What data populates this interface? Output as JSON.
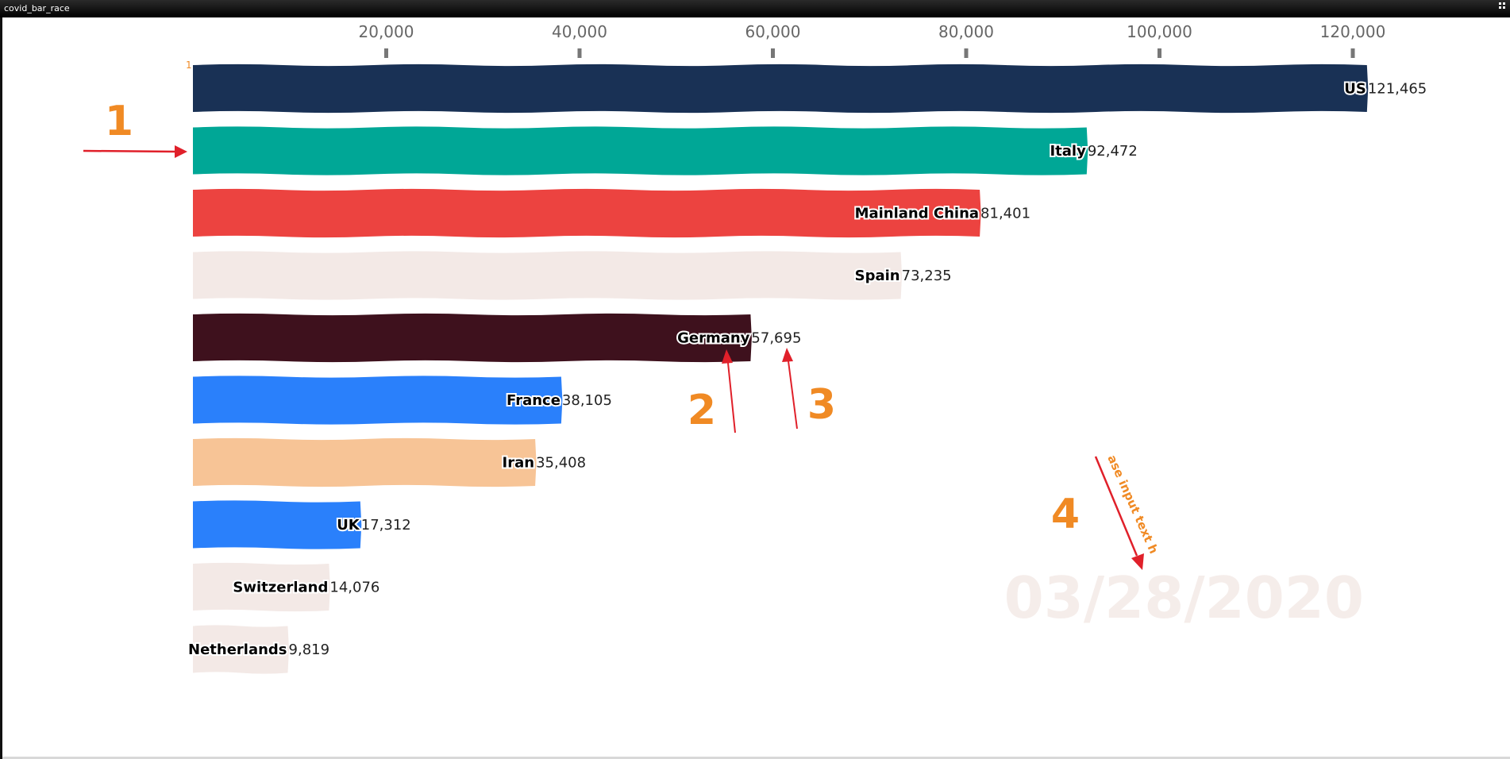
{
  "window": {
    "title": "covid_bar_race"
  },
  "chart_data": {
    "type": "bar",
    "orientation": "horizontal",
    "categories": [
      "US",
      "Italy",
      "Mainland China",
      "Spain",
      "Germany",
      "France",
      "Iran",
      "UK",
      "Switzerland",
      "Netherlands"
    ],
    "values": [
      121465,
      92472,
      81401,
      73235,
      57695,
      38105,
      35408,
      17312,
      14076,
      9819
    ],
    "value_labels": [
      "121,465",
      "92,472",
      "81,401",
      "73,235",
      "57,695",
      "38,105",
      "35,408",
      "17,312",
      "14,076",
      "9,819"
    ],
    "colors": [
      "#193155",
      "#00a796",
      "#ec4340",
      "#f3e9e6",
      "#3e111d",
      "#2a80fb",
      "#f7c496",
      "#2a80fb",
      "#f3e9e6",
      "#f3e9e6"
    ],
    "x_ticks": [
      20000,
      40000,
      60000,
      80000,
      100000,
      120000
    ],
    "x_tick_labels": [
      "20,000",
      "40,000",
      "60,000",
      "80,000",
      "100,000",
      "120,000"
    ],
    "xlim": [
      0,
      140000
    ],
    "axis_position": "top",
    "rank_marker": "1",
    "date": "03/28/2020",
    "grid": false,
    "legend": "none"
  },
  "annotations": {
    "markers": [
      "1",
      "2",
      "3",
      "4"
    ],
    "arrow_text": "ase input text h",
    "arrow_color": "#e0202a",
    "marker_color": "#f08a24"
  }
}
